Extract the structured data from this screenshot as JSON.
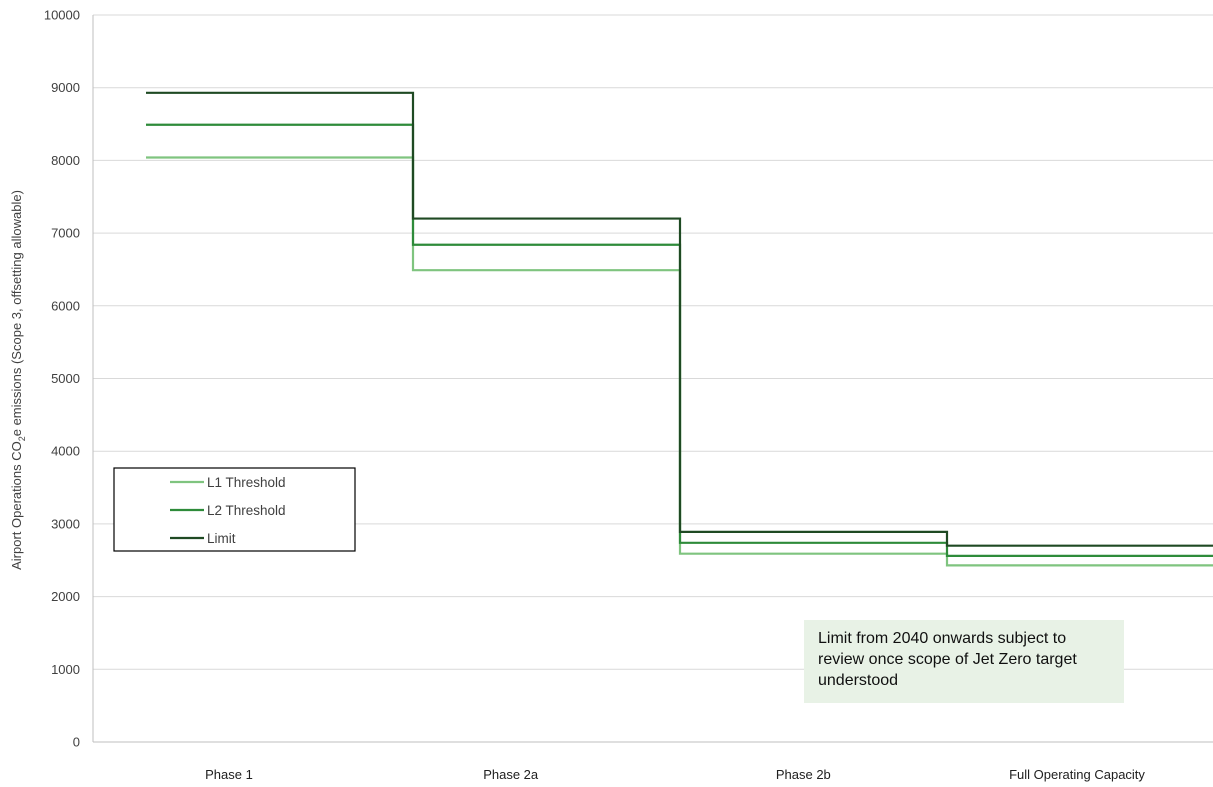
{
  "chart_data": {
    "type": "line",
    "step": true,
    "categories": [
      "Phase 1",
      "Phase 2a",
      "Phase 2b",
      "Full Operating Capacity"
    ],
    "series": [
      {
        "name": "L1 Threshold",
        "values": [
          8040,
          6490,
          2590,
          2430
        ],
        "color": "#7fc47f"
      },
      {
        "name": "L2 Threshold",
        "values": [
          8490,
          6840,
          2740,
          2560
        ],
        "color": "#2e8b3a"
      },
      {
        "name": "Limit",
        "values": [
          8930,
          7200,
          2890,
          2700
        ],
        "color": "#1f4a23"
      }
    ],
    "ylim": [
      0,
      10000
    ],
    "yticks": [
      0,
      1000,
      2000,
      3000,
      4000,
      5000,
      6000,
      7000,
      8000,
      9000,
      10000
    ],
    "ylabel_parts": [
      "Airport Operations CO",
      "2",
      "e emissions (Scope 3, offsetting allowable)"
    ],
    "grid": true,
    "legend_position": "left",
    "annotation": "Limit from 2040 onwards subject to review once scope of Jet Zero target understood"
  },
  "colors": {
    "gridline": "#d9d9d9",
    "axis": "#bfbfbf",
    "annotation_bg": "#e8f2e6"
  }
}
